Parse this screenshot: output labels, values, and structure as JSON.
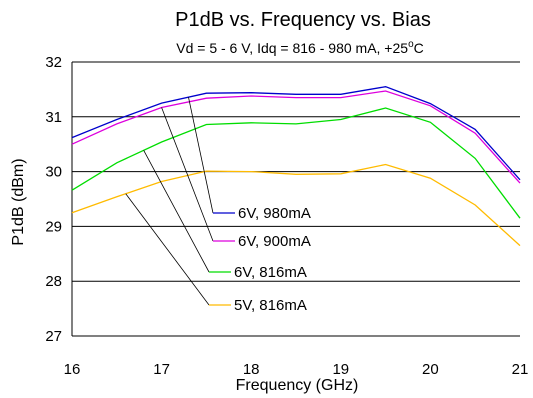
{
  "chart_data": {
    "type": "line",
    "title": "P1dB vs. Frequency vs. Bias",
    "subtitle_main": "Vd = 5 - 6 V, Idq = 816 - 980 mA, +25",
    "subtitle_deg": "o",
    "subtitle_unit": "C",
    "xlabel": "Frequency (GHz)",
    "ylabel": "P1dB (dBm)",
    "xlim": [
      16,
      21
    ],
    "ylim": [
      27,
      32
    ],
    "x_ticks": [
      "16",
      "17",
      "18",
      "19",
      "20",
      "21"
    ],
    "y_ticks": [
      "27",
      "28",
      "29",
      "30",
      "31",
      "32"
    ],
    "grid": "horizontal",
    "legend": "inline, center-left with leader lines",
    "x": [
      16,
      16.5,
      17,
      17.5,
      18,
      18.5,
      19,
      19.5,
      20,
      20.5,
      21
    ],
    "series": [
      {
        "name": "6V, 980mA",
        "color": "#0000cc",
        "values": [
          30.62,
          30.95,
          31.25,
          31.43,
          31.44,
          31.41,
          31.41,
          31.55,
          31.24,
          30.77,
          29.85
        ]
      },
      {
        "name": "6V, 900mA",
        "color": "#dd00dd",
        "values": [
          30.5,
          30.87,
          31.17,
          31.34,
          31.38,
          31.35,
          31.35,
          31.47,
          31.2,
          30.7,
          29.79
        ]
      },
      {
        "name": "6V, 816mA",
        "color": "#00dd00",
        "values": [
          29.66,
          30.16,
          30.54,
          30.86,
          30.89,
          30.87,
          30.95,
          31.16,
          30.9,
          30.24,
          29.15
        ]
      },
      {
        "name": "5V, 816mA",
        "color": "#ffbb00",
        "values": [
          29.25,
          29.54,
          29.82,
          30.01,
          30.0,
          29.95,
          29.96,
          30.13,
          29.88,
          29.39,
          28.65
        ]
      }
    ]
  }
}
